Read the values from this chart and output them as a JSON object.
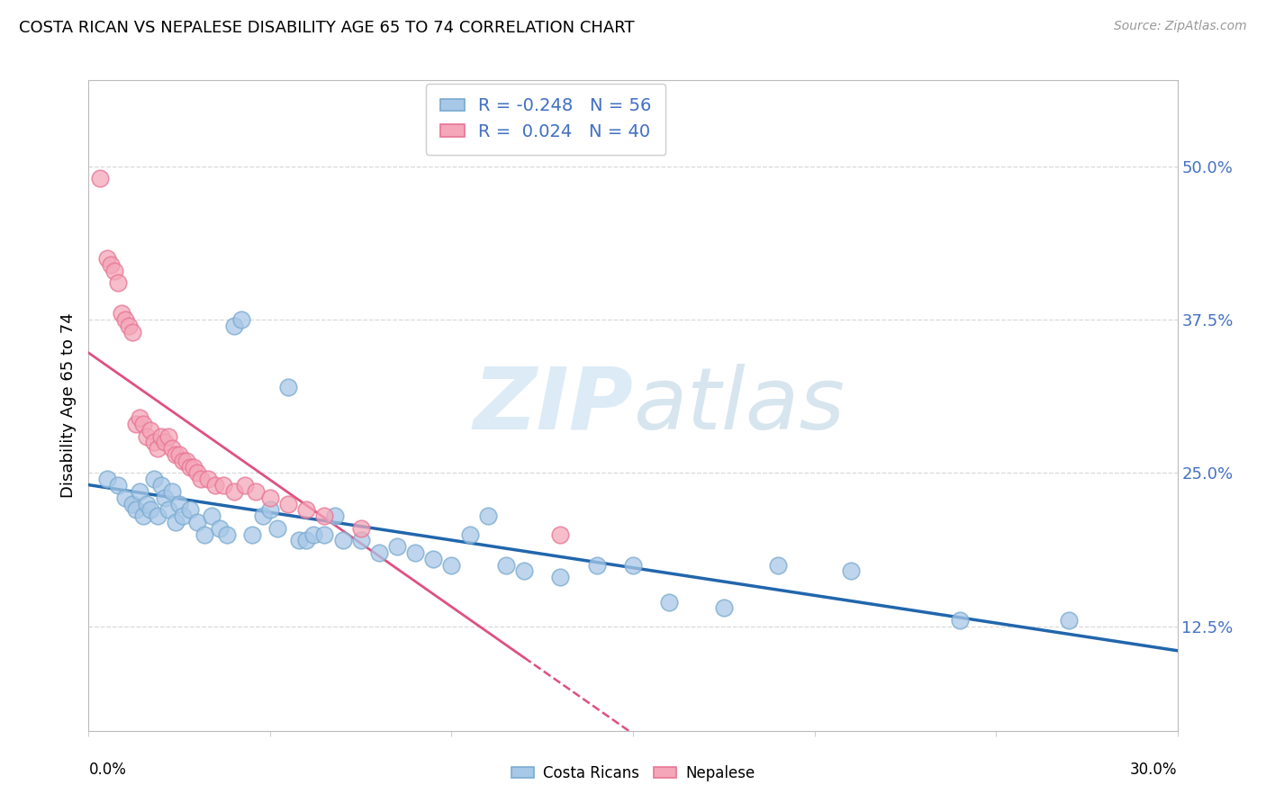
{
  "title": "COSTA RICAN VS NEPALESE DISABILITY AGE 65 TO 74 CORRELATION CHART",
  "source": "Source: ZipAtlas.com",
  "ylabel": "Disability Age 65 to 74",
  "right_yticks": [
    "50.0%",
    "37.5%",
    "25.0%",
    "12.5%"
  ],
  "right_ytick_vals": [
    0.5,
    0.375,
    0.25,
    0.125
  ],
  "xlim": [
    0.0,
    0.3
  ],
  "ylim": [
    0.04,
    0.57
  ],
  "legend_r_blue": "-0.248",
  "legend_n_blue": "56",
  "legend_r_pink": "0.024",
  "legend_n_pink": "40",
  "blue_scatter_color": "#a8c8e8",
  "blue_scatter_edge": "#7aabcf",
  "pink_scatter_color": "#f4a7b9",
  "pink_scatter_edge": "#e87595",
  "blue_line_color": "#2166ac",
  "pink_line_solid_color": "#e05080",
  "pink_line_dash_color": "#e05080",
  "watermark_color": "#daeaf5",
  "background_color": "#ffffff",
  "grid_color": "#d0d0d0",
  "label_color_blue": "#4472c4",
  "costa_ricans_x": [
    0.005,
    0.008,
    0.01,
    0.012,
    0.013,
    0.014,
    0.015,
    0.016,
    0.017,
    0.018,
    0.019,
    0.02,
    0.021,
    0.022,
    0.023,
    0.024,
    0.025,
    0.026,
    0.028,
    0.03,
    0.032,
    0.034,
    0.036,
    0.038,
    0.04,
    0.042,
    0.045,
    0.048,
    0.05,
    0.052,
    0.055,
    0.058,
    0.06,
    0.062,
    0.065,
    0.068,
    0.07,
    0.075,
    0.08,
    0.085,
    0.09,
    0.095,
    0.1,
    0.105,
    0.11,
    0.115,
    0.12,
    0.13,
    0.14,
    0.15,
    0.16,
    0.175,
    0.19,
    0.21,
    0.24,
    0.27
  ],
  "costa_ricans_y": [
    0.245,
    0.24,
    0.23,
    0.225,
    0.22,
    0.235,
    0.215,
    0.225,
    0.22,
    0.245,
    0.215,
    0.24,
    0.23,
    0.22,
    0.235,
    0.21,
    0.225,
    0.215,
    0.22,
    0.21,
    0.2,
    0.215,
    0.205,
    0.2,
    0.37,
    0.375,
    0.2,
    0.215,
    0.22,
    0.205,
    0.32,
    0.195,
    0.195,
    0.2,
    0.2,
    0.215,
    0.195,
    0.195,
    0.185,
    0.19,
    0.185,
    0.18,
    0.175,
    0.2,
    0.215,
    0.175,
    0.17,
    0.165,
    0.175,
    0.175,
    0.145,
    0.14,
    0.175,
    0.17,
    0.13,
    0.13
  ],
  "nepalese_x": [
    0.003,
    0.005,
    0.006,
    0.007,
    0.008,
    0.009,
    0.01,
    0.011,
    0.012,
    0.013,
    0.014,
    0.015,
    0.016,
    0.017,
    0.018,
    0.019,
    0.02,
    0.021,
    0.022,
    0.023,
    0.024,
    0.025,
    0.026,
    0.027,
    0.028,
    0.029,
    0.03,
    0.031,
    0.033,
    0.035,
    0.037,
    0.04,
    0.043,
    0.046,
    0.05,
    0.055,
    0.06,
    0.065,
    0.075,
    0.13
  ],
  "nepalese_y": [
    0.49,
    0.425,
    0.42,
    0.415,
    0.405,
    0.38,
    0.375,
    0.37,
    0.365,
    0.29,
    0.295,
    0.29,
    0.28,
    0.285,
    0.275,
    0.27,
    0.28,
    0.275,
    0.28,
    0.27,
    0.265,
    0.265,
    0.26,
    0.26,
    0.255,
    0.255,
    0.25,
    0.245,
    0.245,
    0.24,
    0.24,
    0.235,
    0.24,
    0.235,
    0.23,
    0.225,
    0.22,
    0.215,
    0.205,
    0.2
  ]
}
